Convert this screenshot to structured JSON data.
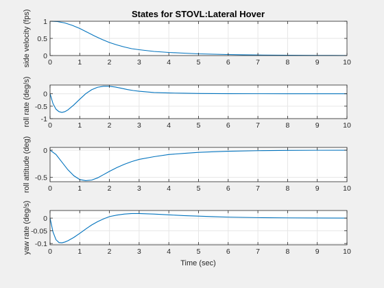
{
  "figure": {
    "title": "States for STOVL:Lateral Hover",
    "xlabel": "Time (sec)",
    "line_color": "#0072BD",
    "axes_color": "#262626",
    "grid_color": "#e6e6e6",
    "background": "#f0f0f0",
    "plot_background": "#ffffff"
  },
  "chart_data": [
    {
      "type": "line",
      "title": "States for STOVL:Lateral Hover",
      "xlabel": "",
      "ylabel": "side velocity (fps)",
      "xlim": [
        0,
        10
      ],
      "ylim": [
        0,
        1
      ],
      "xticks": [
        0,
        1,
        2,
        3,
        4,
        5,
        6,
        7,
        8,
        9,
        10
      ],
      "yticks": [
        0,
        0.5,
        1
      ],
      "yticklabels": [
        "0",
        "0.5",
        "1"
      ],
      "grid": true,
      "x": [
        0,
        0.25,
        0.5,
        0.75,
        1,
        1.25,
        1.5,
        1.75,
        2,
        2.25,
        2.5,
        2.75,
        3,
        3.5,
        4,
        4.5,
        5,
        5.5,
        6,
        6.5,
        7,
        7.5,
        8,
        8.5,
        9,
        9.5,
        10
      ],
      "y": [
        1,
        0.99,
        0.95,
        0.88,
        0.79,
        0.68,
        0.57,
        0.47,
        0.38,
        0.31,
        0.25,
        0.2,
        0.17,
        0.12,
        0.09,
        0.07,
        0.05,
        0.04,
        0.03,
        0.022,
        0.016,
        0.012,
        0.009,
        0.006,
        0.004,
        0.003,
        0.002
      ]
    },
    {
      "type": "line",
      "xlabel": "",
      "ylabel": "roll rate (deg/s)",
      "xlim": [
        0,
        10
      ],
      "ylim": [
        -1,
        0.35
      ],
      "xticks": [
        0,
        1,
        2,
        3,
        4,
        5,
        6,
        7,
        8,
        9,
        10
      ],
      "yticks": [
        -1,
        -0.5,
        0
      ],
      "yticklabels": [
        "-1",
        "-0.5",
        "0"
      ],
      "grid": true,
      "x": [
        0,
        0.1,
        0.2,
        0.3,
        0.4,
        0.5,
        0.6,
        0.8,
        1,
        1.2,
        1.4,
        1.6,
        1.8,
        2,
        2.2,
        2.4,
        2.6,
        2.8,
        3,
        3.5,
        4,
        4.5,
        5,
        6,
        7,
        8,
        9,
        10
      ],
      "y": [
        0,
        -0.4,
        -0.62,
        -0.72,
        -0.75,
        -0.72,
        -0.65,
        -0.45,
        -0.22,
        0.0,
        0.16,
        0.26,
        0.3,
        0.3,
        0.27,
        0.22,
        0.17,
        0.13,
        0.1,
        0.05,
        0.03,
        0.02,
        0.01,
        0.004,
        0.002,
        0.001,
        0.0,
        0.0
      ]
    },
    {
      "type": "line",
      "xlabel": "",
      "ylabel": "roll attitude (deg)",
      "xlim": [
        0,
        10
      ],
      "ylim": [
        -0.58,
        0.05
      ],
      "xticks": [
        0,
        1,
        2,
        3,
        4,
        5,
        6,
        7,
        8,
        9,
        10
      ],
      "yticks": [
        -0.5,
        0
      ],
      "yticklabels": [
        "-0.5",
        "0"
      ],
      "grid": true,
      "x": [
        0,
        0.2,
        0.4,
        0.6,
        0.8,
        1,
        1.2,
        1.4,
        1.6,
        1.8,
        2,
        2.25,
        2.5,
        2.75,
        3,
        3.5,
        4,
        4.5,
        5,
        5.5,
        6,
        7,
        8,
        9,
        10
      ],
      "y": [
        0,
        -0.08,
        -0.22,
        -0.36,
        -0.47,
        -0.54,
        -0.56,
        -0.55,
        -0.51,
        -0.45,
        -0.39,
        -0.32,
        -0.26,
        -0.21,
        -0.17,
        -0.12,
        -0.08,
        -0.06,
        -0.04,
        -0.03,
        -0.02,
        -0.01,
        -0.004,
        -0.002,
        -0.001
      ]
    },
    {
      "type": "line",
      "xlabel": "Time (sec)",
      "ylabel": "yaw rate (deg/s)",
      "xlim": [
        0,
        10
      ],
      "ylim": [
        -0.105,
        0.03
      ],
      "xticks": [
        0,
        1,
        2,
        3,
        4,
        5,
        6,
        7,
        8,
        9,
        10
      ],
      "yticks": [
        -0.1,
        -0.05,
        0
      ],
      "yticklabels": [
        "-0.1",
        "-0.05",
        "0"
      ],
      "grid": true,
      "x": [
        0,
        0.1,
        0.2,
        0.3,
        0.4,
        0.5,
        0.6,
        0.8,
        1,
        1.2,
        1.4,
        1.6,
        1.8,
        2,
        2.25,
        2.5,
        2.75,
        3,
        3.5,
        4,
        4.5,
        5,
        5.5,
        6,
        7,
        8,
        9,
        10
      ],
      "y": [
        0,
        -0.055,
        -0.085,
        -0.096,
        -0.097,
        -0.094,
        -0.089,
        -0.076,
        -0.06,
        -0.043,
        -0.027,
        -0.014,
        -0.003,
        0.006,
        0.012,
        0.016,
        0.018,
        0.018,
        0.016,
        0.013,
        0.01,
        0.008,
        0.006,
        0.004,
        0.002,
        0.001,
        0.0005,
        0.0
      ]
    }
  ]
}
